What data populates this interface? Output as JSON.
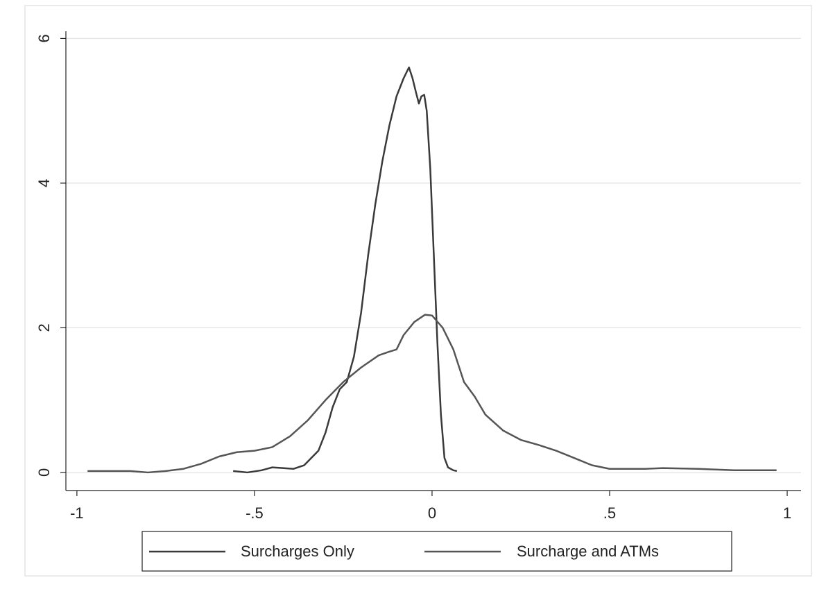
{
  "chart_data": {
    "type": "line",
    "series": [
      {
        "name": "Surcharges Only",
        "color": "#3a3a3a",
        "x": [
          -0.56,
          -0.52,
          -0.48,
          -0.45,
          -0.42,
          -0.39,
          -0.36,
          -0.32,
          -0.3,
          -0.28,
          -0.26,
          -0.24,
          -0.22,
          -0.2,
          -0.18,
          -0.16,
          -0.14,
          -0.12,
          -0.1,
          -0.08,
          -0.065,
          -0.055,
          -0.045,
          -0.037,
          -0.03,
          -0.022,
          -0.015,
          -0.005,
          0.005,
          0.015,
          0.025,
          0.035,
          0.045,
          0.06,
          0.07
        ],
        "values": [
          0.02,
          0.0,
          0.03,
          0.07,
          0.06,
          0.05,
          0.1,
          0.3,
          0.55,
          0.9,
          1.15,
          1.25,
          1.6,
          2.2,
          3.0,
          3.7,
          4.3,
          4.8,
          5.2,
          5.45,
          5.6,
          5.45,
          5.25,
          5.1,
          5.2,
          5.22,
          5.0,
          4.2,
          3.0,
          1.8,
          0.8,
          0.2,
          0.07,
          0.03,
          0.02
        ]
      },
      {
        "name": "Surcharge and ATMs",
        "color": "#555555",
        "x": [
          -0.97,
          -0.85,
          -0.8,
          -0.75,
          -0.7,
          -0.65,
          -0.6,
          -0.55,
          -0.5,
          -0.45,
          -0.4,
          -0.35,
          -0.3,
          -0.25,
          -0.2,
          -0.15,
          -0.12,
          -0.1,
          -0.08,
          -0.05,
          -0.02,
          0.0,
          0.03,
          0.06,
          0.09,
          0.12,
          0.15,
          0.2,
          0.25,
          0.3,
          0.35,
          0.4,
          0.45,
          0.5,
          0.6,
          0.65,
          0.75,
          0.85,
          0.97
        ],
        "values": [
          0.02,
          0.02,
          0.0,
          0.02,
          0.05,
          0.12,
          0.22,
          0.28,
          0.3,
          0.35,
          0.5,
          0.72,
          1.0,
          1.25,
          1.45,
          1.62,
          1.67,
          1.7,
          1.9,
          2.08,
          2.18,
          2.17,
          2.0,
          1.7,
          1.25,
          1.05,
          0.8,
          0.58,
          0.45,
          0.38,
          0.3,
          0.2,
          0.1,
          0.05,
          0.05,
          0.06,
          0.05,
          0.03,
          0.03
        ]
      }
    ],
    "xlim": [
      -1.031,
      1.039
    ],
    "xticks": [
      -1,
      {
        "value": -0.5,
        "label": "-.5"
      },
      0,
      {
        "value": 0.5,
        "label": ".5"
      },
      1
    ],
    "ylim": [
      -0.25,
      6.1
    ],
    "yticks": [
      0,
      2,
      4,
      6
    ],
    "grid": true,
    "legend": "bottom"
  }
}
